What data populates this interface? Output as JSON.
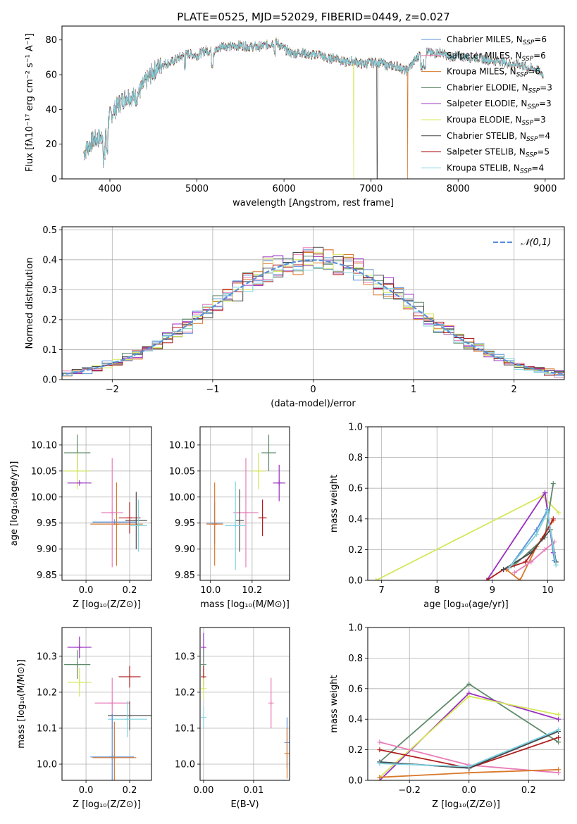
{
  "figure_title": "PLATE=0525, MJD=52029, FIBERID=0449, z=0.027",
  "colors": {
    "chabrier_miles": "#5a8fd8",
    "salpeter_miles": "#e87db8",
    "kroupa_miles": "#d9782c",
    "chabrier_elodie": "#5f8a6a",
    "salpeter_elodie": "#9a2fc0",
    "kroupa_elodie": "#d4e857",
    "chabrier_stelib": "#4a4a4a",
    "salpeter_stelib": "#b01c1c",
    "kroupa_stelib": "#7fd3df",
    "normal_curve": "#5a8fd8",
    "grid": "#b0b0b0"
  },
  "chart_data": [
    {
      "id": "spectrum",
      "type": "line",
      "xlabel": "wavelength [Angstrom, rest frame]",
      "ylabel": "Flux [fλ10⁻¹⁷ erg cm⁻² s⁻¹ A⁻¹]",
      "xlim": [
        3450,
        9220
      ],
      "ylim": [
        0,
        88
      ],
      "xticks": [
        4000,
        5000,
        6000,
        7000,
        8000,
        9000
      ],
      "yticks": [
        0,
        20,
        40,
        60,
        80
      ],
      "grid": false,
      "legend_position": "top-right",
      "legend": [
        "Chabrier MILES, N_SSP=6",
        "Salpeter MILES, N_SSP=6",
        "Kroupa MILES, N_SSP=6",
        "Chabrier ELODIE, N_SSP=3",
        "Salpeter ELODIE, N_SSP=3",
        "Kroupa ELODIE, N_SSP=3",
        "Chabrier STELIB, N_SSP=4",
        "Salpeter STELIB, N_SSP=5",
        "Kroupa STELIB, N_SSP=4"
      ],
      "continuum": [
        [
          3700,
          15
        ],
        [
          3800,
          22
        ],
        [
          3900,
          24
        ],
        [
          3950,
          28
        ],
        [
          4000,
          36
        ],
        [
          4100,
          43
        ],
        [
          4200,
          48
        ],
        [
          4300,
          47
        ],
        [
          4400,
          55
        ],
        [
          4500,
          62
        ],
        [
          4600,
          66
        ],
        [
          4700,
          67
        ],
        [
          4800,
          70
        ],
        [
          4900,
          72
        ],
        [
          5000,
          71
        ],
        [
          5100,
          74
        ],
        [
          5200,
          73
        ],
        [
          5300,
          77
        ],
        [
          5400,
          76
        ],
        [
          5500,
          77
        ],
        [
          5600,
          76
        ],
        [
          5700,
          76
        ],
        [
          5800,
          77
        ],
        [
          5900,
          79
        ],
        [
          6000,
          75
        ],
        [
          6100,
          72
        ],
        [
          6200,
          73
        ],
        [
          6300,
          71
        ],
        [
          6400,
          72
        ],
        [
          6500,
          69
        ],
        [
          6600,
          70
        ],
        [
          6700,
          67
        ],
        [
          6800,
          68
        ],
        [
          6900,
          66
        ],
        [
          7000,
          67
        ],
        [
          7100,
          67
        ],
        [
          7200,
          65
        ],
        [
          7300,
          65
        ],
        [
          7400,
          62
        ],
        [
          7500,
          68
        ],
        [
          7600,
          74
        ],
        [
          7700,
          72
        ],
        [
          7800,
          73
        ],
        [
          7900,
          70
        ],
        [
          8000,
          71
        ],
        [
          8100,
          70
        ],
        [
          8200,
          70
        ],
        [
          8300,
          69
        ],
        [
          8400,
          68
        ],
        [
          8500,
          68
        ],
        [
          8600,
          66
        ],
        [
          8700,
          66
        ],
        [
          8800,
          64
        ],
        [
          8900,
          63
        ],
        [
          8980,
          60
        ]
      ],
      "dropouts": [
        [
          3900,
          "kroupa_elodie"
        ],
        [
          6800,
          "kroupa_elodie"
        ],
        [
          7070,
          "chabrier_stelib"
        ],
        [
          7420,
          "kroupa_miles"
        ]
      ]
    },
    {
      "id": "residuals",
      "type": "step-histogram",
      "xlabel": "(data-model)/error",
      "ylabel": "Normed distribution",
      "xlim": [
        -2.5,
        2.5
      ],
      "ylim": [
        0,
        0.51
      ],
      "xticks": [
        -2,
        -1,
        0,
        1,
        2
      ],
      "yticks": [
        0.0,
        0.1,
        0.2,
        0.3,
        0.4,
        0.5
      ],
      "grid": true,
      "legend_position": "top-right",
      "legend": [
        "𝒩(0,1)"
      ],
      "bin_width": 0.1,
      "gaussian": {
        "mean": 0,
        "sigma": 1
      }
    },
    {
      "id": "age_vs_Z",
      "type": "errorbar",
      "xlabel": "Z [log₁₀(Z/Z⊙)]",
      "ylabel": "age  [log₁₀(age/yr)]",
      "xlim": [
        -0.11,
        0.3
      ],
      "ylim": [
        9.84,
        10.135
      ],
      "xticks": [
        0.0,
        0.2
      ],
      "yticks": [
        9.85,
        9.9,
        9.95,
        10.0,
        10.05,
        10.1
      ],
      "grid": true,
      "points": [
        {
          "c": "chabrier_elodie",
          "x": -0.04,
          "y": 10.085,
          "xerr": 0.06,
          "yerr": 0.035
        },
        {
          "c": "kroupa_elodie",
          "x": -0.04,
          "y": 10.05,
          "xerr": 0.06,
          "yerr": 0.035
        },
        {
          "c": "salpeter_elodie",
          "x": -0.03,
          "y": 10.027,
          "xerr": 0.055,
          "yerr": 0.0
        },
        {
          "c": "chabrier_miles",
          "x": 0.13,
          "y": 9.952,
          "xerr": 0.1,
          "yerr": 0.0
        },
        {
          "c": "kroupa_miles",
          "x": 0.14,
          "y": 9.948,
          "xerr": 0.12,
          "yerr": 0.08
        },
        {
          "c": "salpeter_miles",
          "x": 0.12,
          "y": 9.97,
          "xerr": 0.05,
          "yerr": 0.105
        },
        {
          "c": "chabrier_stelib",
          "x": 0.23,
          "y": 9.955,
          "xerr": 0.05,
          "yerr": 0.055
        },
        {
          "c": "salpeter_stelib",
          "x": 0.2,
          "y": 9.96,
          "xerr": 0.05,
          "yerr": 0.03
        },
        {
          "c": "kroupa_stelib",
          "x": 0.24,
          "y": 9.945,
          "xerr": 0.04,
          "yerr": 0.05
        }
      ]
    },
    {
      "id": "age_vs_mass",
      "type": "errorbar",
      "xlabel": "mass [log₁₀(M/M⊙)]",
      "ylabel": "",
      "xlim": [
        9.95,
        10.38
      ],
      "ylim": [
        9.84,
        10.135
      ],
      "xticks": [
        10.0,
        10.2
      ],
      "yticks": [
        9.85,
        9.9,
        9.95,
        10.0,
        10.05,
        10.1
      ],
      "grid": true,
      "points": [
        {
          "c": "chabrier_elodie",
          "x": 10.28,
          "y": 10.085,
          "xerr": 0.035,
          "yerr": 0.035
        },
        {
          "c": "kroupa_elodie",
          "x": 10.23,
          "y": 10.05,
          "xerr": 0.035,
          "yerr": 0.035
        },
        {
          "c": "salpeter_elodie",
          "x": 10.33,
          "y": 10.027,
          "xerr": 0.03,
          "yerr": 0.035
        },
        {
          "c": "chabrier_miles",
          "x": 10.02,
          "y": 9.95,
          "xerr": 0.04,
          "yerr": 0.04
        },
        {
          "c": "kroupa_miles",
          "x": 10.02,
          "y": 9.948,
          "xerr": 0.04,
          "yerr": 0.08
        },
        {
          "c": "salpeter_miles",
          "x": 10.17,
          "y": 9.97,
          "xerr": 0.06,
          "yerr": 0.105
        },
        {
          "c": "chabrier_stelib",
          "x": 10.14,
          "y": 9.955,
          "xerr": 0.02,
          "yerr": 0.06
        },
        {
          "c": "salpeter_stelib",
          "x": 10.25,
          "y": 9.96,
          "xerr": 0.02,
          "yerr": 0.035
        },
        {
          "c": "kroupa_stelib",
          "x": 10.12,
          "y": 9.945,
          "xerr": 0.05,
          "yerr": 0.085
        }
      ]
    },
    {
      "id": "mass_weight_vs_age",
      "type": "line",
      "xlabel": "age  [log₁₀(age/yr)]",
      "ylabel": "mass weight",
      "xlim": [
        6.75,
        10.3
      ],
      "ylim": [
        0,
        1.0
      ],
      "xticks": [
        7,
        8,
        9,
        10
      ],
      "yticks": [
        0.0,
        0.2,
        0.4,
        0.6,
        0.8,
        1.0
      ],
      "grid": true,
      "series": [
        {
          "c": "kroupa_elodie",
          "x": [
            6.9,
            9.9,
            10.2
          ],
          "y": [
            0.0,
            0.55,
            0.44
          ]
        },
        {
          "c": "salpeter_elodie",
          "x": [
            8.9,
            9.95,
            10.1
          ],
          "y": [
            0.0,
            0.57,
            0.18
          ]
        },
        {
          "c": "chabrier_elodie",
          "x": [
            9.4,
            9.95,
            10.1
          ],
          "y": [
            0.1,
            0.28,
            0.63
          ]
        },
        {
          "c": "kroupa_miles",
          "x": [
            9.25,
            9.5,
            9.8,
            10.1
          ],
          "y": [
            0.07,
            0.0,
            0.22,
            0.39
          ]
        },
        {
          "c": "salpeter_miles",
          "x": [
            9.4,
            9.7,
            9.95,
            10.12
          ],
          "y": [
            0.05,
            0.12,
            0.2,
            0.25
          ]
        },
        {
          "c": "chabrier_miles",
          "x": [
            9.3,
            9.8,
            10.0,
            10.12
          ],
          "y": [
            0.08,
            0.33,
            0.46,
            0.13
          ]
        },
        {
          "c": "salpeter_stelib",
          "x": [
            8.9,
            9.2,
            9.6,
            9.9,
            10.1
          ],
          "y": [
            0.0,
            0.07,
            0.12,
            0.27,
            0.4
          ]
        },
        {
          "c": "chabrier_stelib",
          "x": [
            9.2,
            9.7,
            10.05,
            10.15
          ],
          "y": [
            0.07,
            0.18,
            0.33,
            0.12
          ]
        },
        {
          "c": "kroupa_stelib",
          "x": [
            9.3,
            9.8,
            10.0,
            10.15
          ],
          "y": [
            0.08,
            0.3,
            0.45,
            0.1
          ]
        }
      ]
    },
    {
      "id": "mass_vs_Z",
      "type": "errorbar",
      "xlabel": "Z [log₁₀(Z/Z⊙)]",
      "ylabel": "mass [log₁₀(M/M⊙)]",
      "xlim": [
        -0.11,
        0.3
      ],
      "ylim": [
        9.955,
        10.38
      ],
      "xticks": [
        0.0,
        0.2
      ],
      "yticks": [
        10.0,
        10.1,
        10.2,
        10.3
      ],
      "grid": true,
      "points": [
        {
          "c": "salpeter_elodie",
          "x": -0.03,
          "y": 10.325,
          "xerr": 0.055,
          "yerr": 0.03
        },
        {
          "c": "chabrier_elodie",
          "x": -0.04,
          "y": 10.277,
          "xerr": 0.06,
          "yerr": 0.04
        },
        {
          "c": "kroupa_elodie",
          "x": -0.03,
          "y": 10.228,
          "xerr": 0.055,
          "yerr": 0.04
        },
        {
          "c": "salpeter_stelib",
          "x": 0.2,
          "y": 10.243,
          "xerr": 0.05,
          "yerr": 0.03
        },
        {
          "c": "salpeter_miles",
          "x": 0.12,
          "y": 10.17,
          "xerr": 0.08,
          "yerr": 0.07
        },
        {
          "c": "chabrier_stelib",
          "x": 0.2,
          "y": 10.135,
          "xerr": 0.1,
          "yerr": 0.04
        },
        {
          "c": "kroupa_stelib",
          "x": 0.19,
          "y": 10.125,
          "xerr": 0.09,
          "yerr": 0.05
        },
        {
          "c": "chabrier_miles",
          "x": 0.12,
          "y": 10.02,
          "xerr": 0.1,
          "yerr": 0.12
        },
        {
          "c": "kroupa_miles",
          "x": 0.13,
          "y": 10.018,
          "xerr": 0.1,
          "yerr": 0.1
        }
      ]
    },
    {
      "id": "mass_vs_ebv",
      "type": "errorbar",
      "xlabel": "E(B-V)",
      "ylabel": "",
      "xlim": [
        -0.0007,
        0.0172
      ],
      "ylim": [
        9.955,
        10.38
      ],
      "xticks": [
        0.0,
        0.01
      ],
      "yticks": [
        10.0,
        10.1,
        10.2,
        10.3
      ],
      "grid": true,
      "points": [
        {
          "c": "salpeter_elodie",
          "x": 0.0,
          "y": 10.325,
          "xerr": 0,
          "yerr": 0.04
        },
        {
          "c": "chabrier_elodie",
          "x": 0.0,
          "y": 10.277,
          "xerr": 0,
          "yerr": 0.04
        },
        {
          "c": "salpeter_stelib",
          "x": 0.0,
          "y": 10.243,
          "xerr": 0,
          "yerr": 0.03
        },
        {
          "c": "kroupa_elodie",
          "x": 0.0,
          "y": 10.21,
          "xerr": 0,
          "yerr": 0.03
        },
        {
          "c": "kroupa_stelib",
          "x": 0.0,
          "y": 10.13,
          "xerr": 0,
          "yerr": 0.03
        },
        {
          "c": "salpeter_miles",
          "x": 0.0135,
          "y": 10.17,
          "xerr": 0,
          "yerr": 0.07
        },
        {
          "c": "chabrier_miles",
          "x": 0.0167,
          "y": 10.06,
          "xerr": 0,
          "yerr": 0.07
        },
        {
          "c": "kroupa_miles",
          "x": 0.0167,
          "y": 10.03,
          "xerr": 0,
          "yerr": 0.07
        }
      ]
    },
    {
      "id": "mass_weight_vs_Z",
      "type": "line",
      "xlabel": "Z [log₁₀(Z/Z⊙)]",
      "ylabel": "mass weight",
      "xlim": [
        -0.34,
        0.32
      ],
      "ylim": [
        0,
        1.0
      ],
      "xticks": [
        -0.2,
        0.0,
        0.2
      ],
      "yticks": [
        0.0,
        0.2,
        0.4,
        0.6,
        0.8,
        1.0
      ],
      "grid": true,
      "series": [
        {
          "c": "chabrier_elodie",
          "x": [
            -0.3,
            0.0,
            0.3
          ],
          "y": [
            0.12,
            0.63,
            0.25
          ]
        },
        {
          "c": "salpeter_elodie",
          "x": [
            -0.3,
            0.0,
            0.3
          ],
          "y": [
            0.0,
            0.57,
            0.4
          ]
        },
        {
          "c": "kroupa_elodie",
          "x": [
            -0.3,
            0.0,
            0.3
          ],
          "y": [
            0.02,
            0.55,
            0.43
          ]
        },
        {
          "c": "salpeter_miles",
          "x": [
            -0.3,
            0.0,
            0.3
          ],
          "y": [
            0.25,
            0.1,
            0.05
          ]
        },
        {
          "c": "kroupa_miles",
          "x": [
            -0.3,
            0.0,
            0.3
          ],
          "y": [
            0.02,
            0.05,
            0.07
          ]
        },
        {
          "c": "chabrier_miles",
          "x": [
            -0.3,
            0.0,
            0.3
          ],
          "y": [
            0.12,
            0.08,
            0.33
          ]
        },
        {
          "c": "salpeter_stelib",
          "x": [
            -0.3,
            0.0,
            0.3
          ],
          "y": [
            0.2,
            0.08,
            0.28
          ]
        },
        {
          "c": "chabrier_stelib",
          "x": [
            -0.3,
            0.0,
            0.3
          ],
          "y": [
            0.12,
            0.08,
            0.32
          ]
        },
        {
          "c": "kroupa_stelib",
          "x": [
            -0.3,
            0.0,
            0.3
          ],
          "y": [
            0.11,
            0.09,
            0.33
          ]
        }
      ]
    }
  ]
}
